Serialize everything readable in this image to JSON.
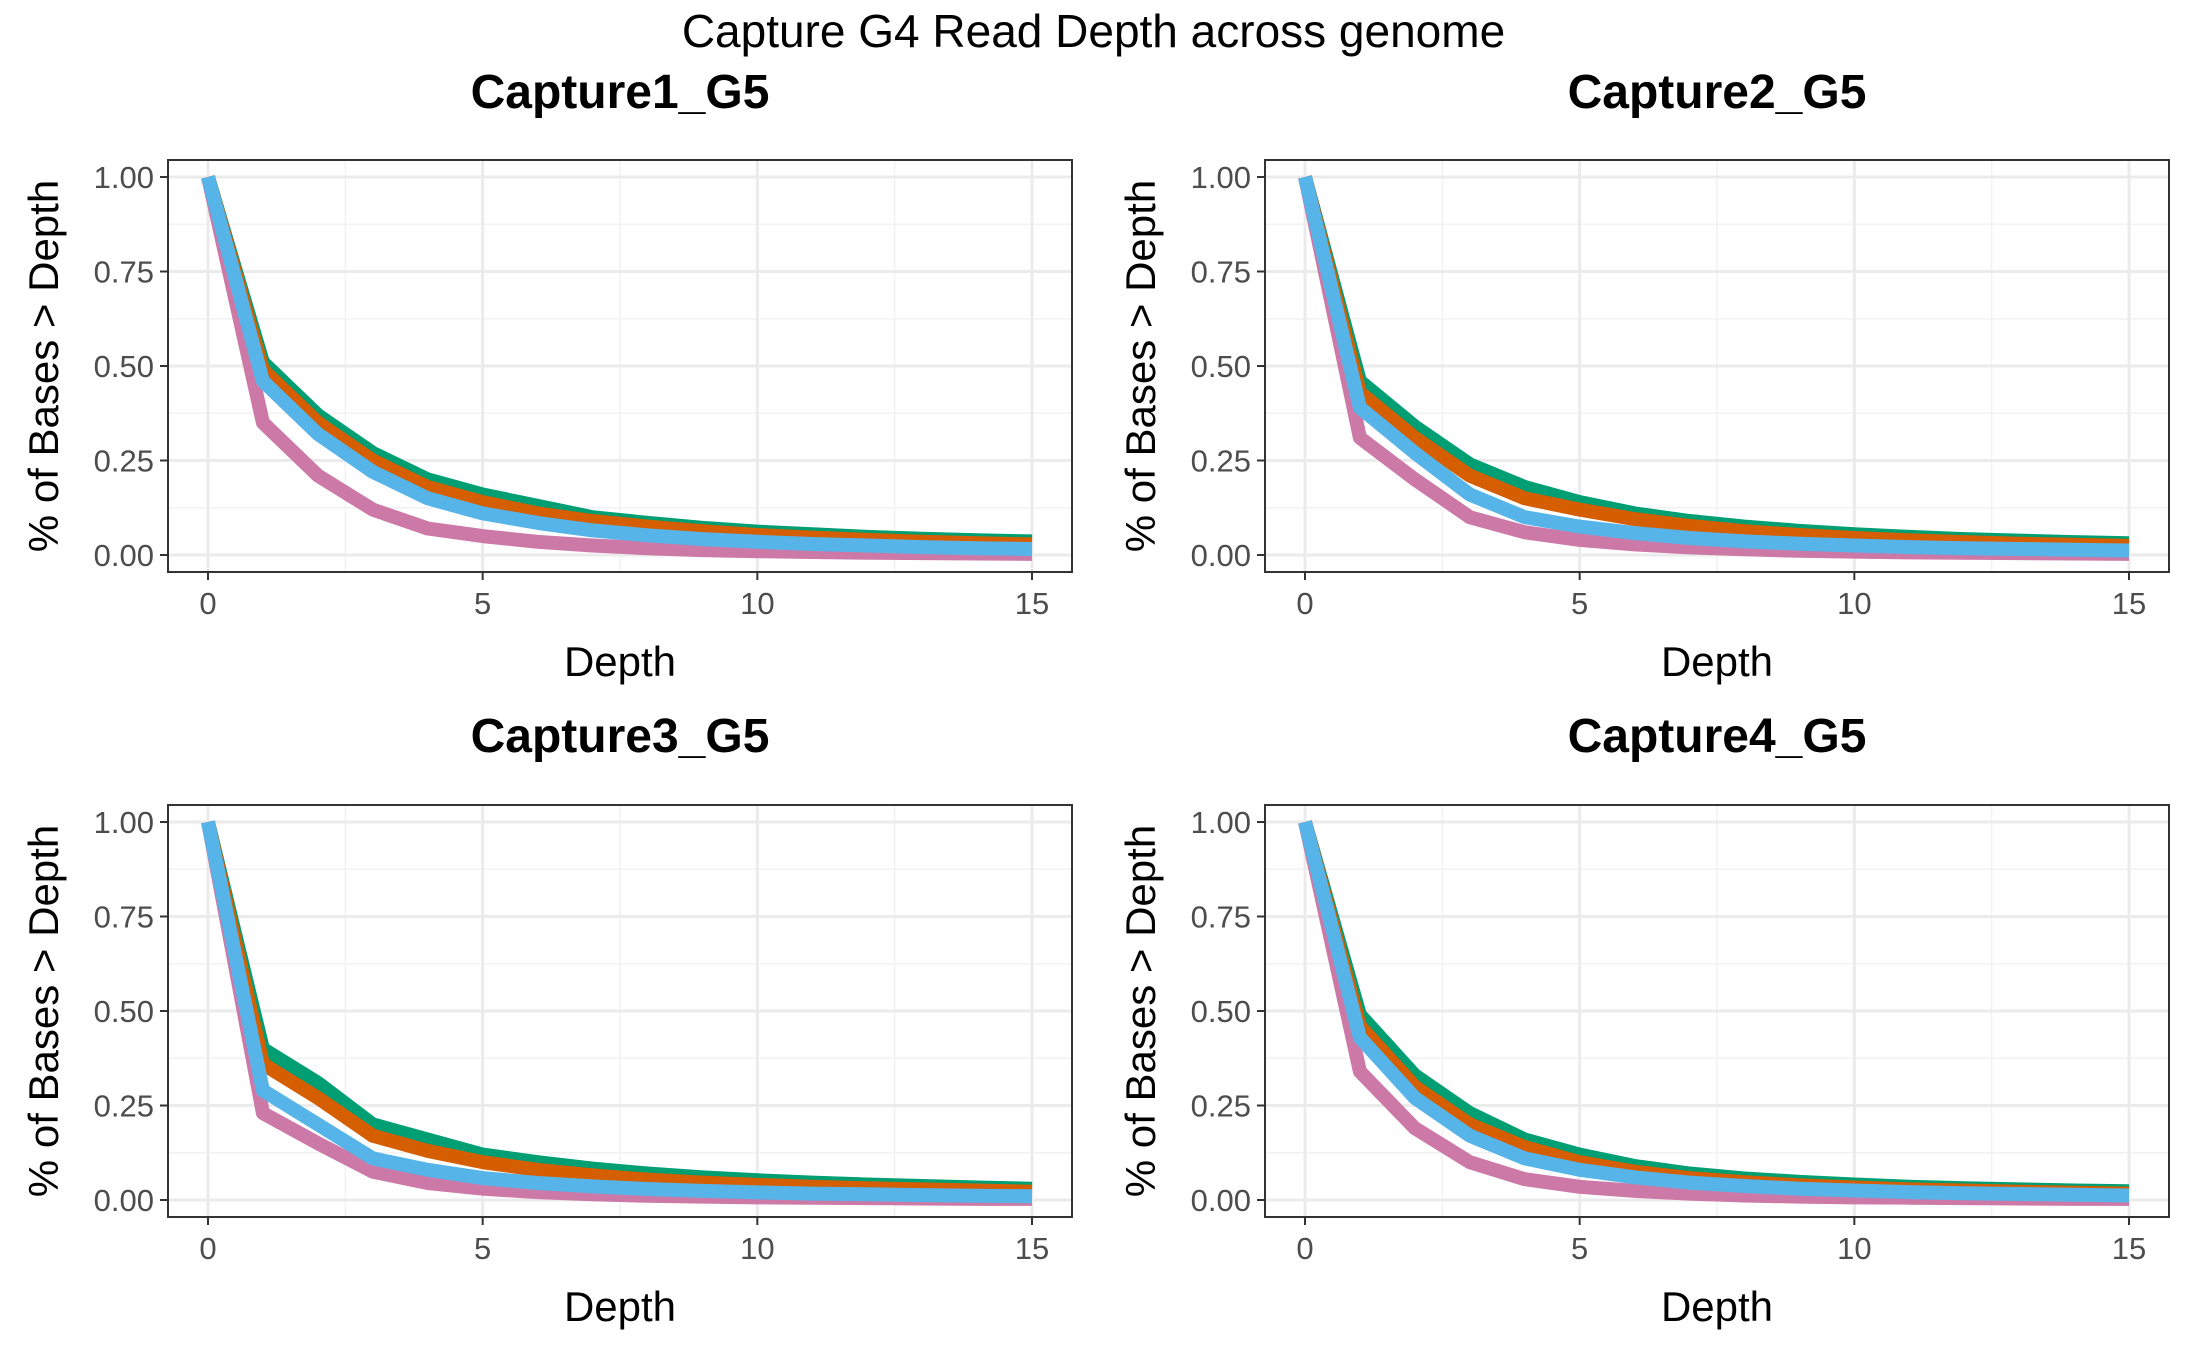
{
  "figure": {
    "title": "Capture G4 Read Depth across genome"
  },
  "chart_data": [
    {
      "type": "line",
      "title": "Capture1_G5",
      "xlabel": "Depth",
      "ylabel": "% of Bases > Depth",
      "xlim": [
        0,
        15
      ],
      "ylim": [
        0,
        1
      ],
      "xticks": [
        "0",
        "5",
        "10",
        "15"
      ],
      "yticks": [
        "0.00",
        "0.25",
        "0.50",
        "0.75",
        "1.00"
      ],
      "grid": true,
      "x": [
        0,
        1,
        2,
        3,
        4,
        5,
        6,
        7,
        8,
        9,
        10,
        11,
        12,
        13,
        14,
        15
      ],
      "series": [
        {
          "color": "#009E73",
          "values": [
            1.0,
            0.51,
            0.37,
            0.27,
            0.2,
            0.16,
            0.13,
            0.1,
            0.085,
            0.072,
            0.062,
            0.055,
            0.048,
            0.043,
            0.039,
            0.036
          ]
        },
        {
          "color": "#D55E00",
          "values": [
            1.0,
            0.49,
            0.35,
            0.25,
            0.18,
            0.14,
            0.11,
            0.09,
            0.075,
            0.063,
            0.053,
            0.046,
            0.04,
            0.035,
            0.031,
            0.028
          ]
        },
        {
          "color": "#CC79A7",
          "values": [
            1.0,
            0.35,
            0.21,
            0.12,
            0.07,
            0.05,
            0.035,
            0.025,
            0.018,
            0.013,
            0.01,
            0.008,
            0.006,
            0.005,
            0.004,
            0.003
          ]
        },
        {
          "color": "#56B4E9",
          "values": [
            1.0,
            0.46,
            0.32,
            0.22,
            0.15,
            0.11,
            0.085,
            0.065,
            0.052,
            0.042,
            0.035,
            0.029,
            0.025,
            0.021,
            0.018,
            0.016
          ]
        }
      ]
    },
    {
      "type": "line",
      "title": "Capture2_G5",
      "xlabel": "Depth",
      "ylabel": "% of Bases > Depth",
      "xlim": [
        0,
        15
      ],
      "ylim": [
        0,
        1
      ],
      "xticks": [
        "0",
        "5",
        "10",
        "15"
      ],
      "yticks": [
        "0.00",
        "0.25",
        "0.50",
        "0.75",
        "1.00"
      ],
      "grid": true,
      "x": [
        0,
        1,
        2,
        3,
        4,
        5,
        6,
        7,
        8,
        9,
        10,
        11,
        12,
        13,
        14,
        15
      ],
      "series": [
        {
          "color": "#009E73",
          "values": [
            1.0,
            0.46,
            0.34,
            0.24,
            0.18,
            0.14,
            0.11,
            0.09,
            0.075,
            0.064,
            0.055,
            0.048,
            0.042,
            0.038,
            0.034,
            0.031
          ]
        },
        {
          "color": "#D55E00",
          "values": [
            1.0,
            0.43,
            0.31,
            0.21,
            0.15,
            0.12,
            0.095,
            0.077,
            0.063,
            0.053,
            0.045,
            0.039,
            0.034,
            0.03,
            0.027,
            0.024
          ]
        },
        {
          "color": "#CC79A7",
          "values": [
            1.0,
            0.31,
            0.2,
            0.1,
            0.06,
            0.04,
            0.028,
            0.02,
            0.015,
            0.011,
            0.009,
            0.007,
            0.006,
            0.005,
            0.004,
            0.003
          ]
        },
        {
          "color": "#56B4E9",
          "values": [
            1.0,
            0.39,
            0.27,
            0.16,
            0.1,
            0.075,
            0.058,
            0.045,
            0.036,
            0.03,
            0.025,
            0.021,
            0.018,
            0.016,
            0.014,
            0.012
          ]
        }
      ]
    },
    {
      "type": "line",
      "title": "Capture3_G5",
      "xlabel": "Depth",
      "ylabel": "% of Bases > Depth",
      "xlim": [
        0,
        15
      ],
      "ylim": [
        0,
        1
      ],
      "xticks": [
        "0",
        "5",
        "10",
        "15"
      ],
      "yticks": [
        "0.00",
        "0.25",
        "0.50",
        "0.75",
        "1.00"
      ],
      "grid": true,
      "x": [
        0,
        1,
        2,
        3,
        4,
        5,
        6,
        7,
        8,
        9,
        10,
        11,
        12,
        13,
        14,
        15
      ],
      "series": [
        {
          "color": "#009E73",
          "values": [
            1.0,
            0.4,
            0.31,
            0.2,
            0.16,
            0.12,
            0.1,
            0.083,
            0.07,
            0.06,
            0.052,
            0.046,
            0.041,
            0.037,
            0.033,
            0.03
          ]
        },
        {
          "color": "#D55E00",
          "values": [
            1.0,
            0.36,
            0.27,
            0.17,
            0.13,
            0.1,
            0.08,
            0.065,
            0.054,
            0.046,
            0.04,
            0.035,
            0.031,
            0.028,
            0.025,
            0.022
          ]
        },
        {
          "color": "#CC79A7",
          "values": [
            1.0,
            0.23,
            0.15,
            0.075,
            0.045,
            0.03,
            0.021,
            0.015,
            0.011,
            0.009,
            0.007,
            0.006,
            0.005,
            0.004,
            0.003,
            0.003
          ]
        },
        {
          "color": "#56B4E9",
          "values": [
            1.0,
            0.29,
            0.2,
            0.11,
            0.08,
            0.058,
            0.045,
            0.036,
            0.029,
            0.024,
            0.02,
            0.017,
            0.015,
            0.013,
            0.011,
            0.01
          ]
        }
      ]
    },
    {
      "type": "line",
      "title": "Capture4_G5",
      "xlabel": "Depth",
      "ylabel": "% of Bases > Depth",
      "xlim": [
        0,
        15
      ],
      "ylim": [
        0,
        1
      ],
      "xticks": [
        "0",
        "5",
        "10",
        "15"
      ],
      "yticks": [
        "0.00",
        "0.25",
        "0.50",
        "0.75",
        "1.00"
      ],
      "grid": true,
      "x": [
        0,
        1,
        2,
        3,
        4,
        5,
        6,
        7,
        8,
        9,
        10,
        11,
        12,
        13,
        14,
        15
      ],
      "series": [
        {
          "color": "#009E73",
          "values": [
            1.0,
            0.49,
            0.33,
            0.23,
            0.16,
            0.12,
            0.09,
            0.07,
            0.057,
            0.048,
            0.041,
            0.035,
            0.031,
            0.028,
            0.025,
            0.023
          ]
        },
        {
          "color": "#D55E00",
          "values": [
            1.0,
            0.46,
            0.3,
            0.2,
            0.14,
            0.1,
            0.075,
            0.058,
            0.047,
            0.039,
            0.033,
            0.028,
            0.025,
            0.022,
            0.019,
            0.017
          ]
        },
        {
          "color": "#CC79A7",
          "values": [
            1.0,
            0.34,
            0.19,
            0.1,
            0.055,
            0.035,
            0.024,
            0.017,
            0.012,
            0.009,
            0.007,
            0.006,
            0.005,
            0.004,
            0.003,
            0.003
          ]
        },
        {
          "color": "#56B4E9",
          "values": [
            1.0,
            0.43,
            0.27,
            0.17,
            0.11,
            0.08,
            0.06,
            0.046,
            0.037,
            0.03,
            0.025,
            0.021,
            0.018,
            0.016,
            0.014,
            0.012
          ]
        }
      ]
    }
  ]
}
